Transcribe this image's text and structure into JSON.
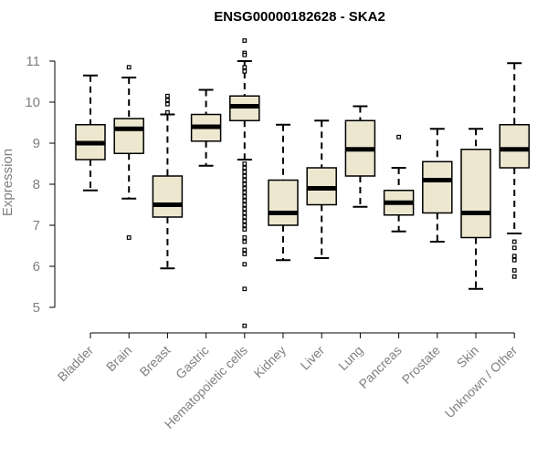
{
  "chart_data": {
    "type": "boxplot",
    "title": "ENSG00000182628 - SKA2",
    "xlabel": "",
    "ylabel": "Expression",
    "ylim": [
      4.5,
      11.5
    ],
    "yticks": [
      5,
      6,
      7,
      8,
      9,
      10,
      11
    ],
    "box_color": "#ede7cf",
    "categories": [
      "Bladder",
      "Brain",
      "Breast",
      "Gastric",
      "Hematopoietic cells",
      "Kidney",
      "Liver",
      "Lung",
      "Pancreas",
      "Prostate",
      "Skin",
      "Unknown / Other"
    ],
    "boxes": [
      {
        "name": "Bladder",
        "whisker_low": 7.85,
        "q1": 8.6,
        "median": 9.0,
        "q3": 9.45,
        "whisker_high": 10.65,
        "outliers": []
      },
      {
        "name": "Brain",
        "whisker_low": 7.65,
        "q1": 8.75,
        "median": 9.35,
        "q3": 9.6,
        "whisker_high": 10.6,
        "outliers": [
          10.85,
          6.7
        ]
      },
      {
        "name": "Breast",
        "whisker_low": 5.95,
        "q1": 7.2,
        "median": 7.5,
        "q3": 8.2,
        "whisker_high": 9.7,
        "outliers": [
          10.15,
          10.05,
          9.95,
          9.75
        ]
      },
      {
        "name": "Gastric",
        "whisker_low": 8.45,
        "q1": 9.05,
        "median": 9.4,
        "q3": 9.7,
        "whisker_high": 10.3,
        "outliers": []
      },
      {
        "name": "Hematopoietic cells",
        "whisker_low": 8.6,
        "q1": 9.55,
        "median": 9.9,
        "q3": 10.15,
        "whisker_high": 11.0,
        "outliers": [
          11.5,
          11.2,
          11.15,
          10.85,
          10.75,
          8.5,
          8.4,
          8.3,
          8.2,
          8.1,
          8.0,
          7.9,
          7.8,
          7.7,
          7.6,
          7.5,
          7.4,
          7.3,
          7.2,
          7.1,
          7.0,
          6.9,
          6.7,
          6.6,
          6.4,
          6.3,
          6.05,
          5.45,
          4.55
        ]
      },
      {
        "name": "Kidney",
        "whisker_low": 6.15,
        "q1": 7.0,
        "median": 7.3,
        "q3": 8.1,
        "whisker_high": 9.45,
        "outliers": []
      },
      {
        "name": "Liver",
        "whisker_low": 6.2,
        "q1": 7.5,
        "median": 7.9,
        "q3": 8.4,
        "whisker_high": 9.55,
        "outliers": []
      },
      {
        "name": "Lung",
        "whisker_low": 7.45,
        "q1": 8.2,
        "median": 8.85,
        "q3": 9.55,
        "whisker_high": 9.9,
        "outliers": []
      },
      {
        "name": "Pancreas",
        "whisker_low": 6.85,
        "q1": 7.25,
        "median": 7.55,
        "q3": 7.85,
        "whisker_high": 8.4,
        "outliers": [
          9.15
        ]
      },
      {
        "name": "Prostate",
        "whisker_low": 6.6,
        "q1": 7.3,
        "median": 8.1,
        "q3": 8.55,
        "whisker_high": 9.35,
        "outliers": []
      },
      {
        "name": "Skin",
        "whisker_low": 5.45,
        "q1": 6.7,
        "median": 7.3,
        "q3": 8.85,
        "whisker_high": 9.35,
        "outliers": []
      },
      {
        "name": "Unknown / Other",
        "whisker_low": 6.8,
        "q1": 8.4,
        "median": 8.85,
        "q3": 9.45,
        "whisker_high": 10.95,
        "outliers": [
          6.6,
          6.45,
          6.25,
          6.15,
          5.9,
          5.75
        ]
      }
    ]
  }
}
